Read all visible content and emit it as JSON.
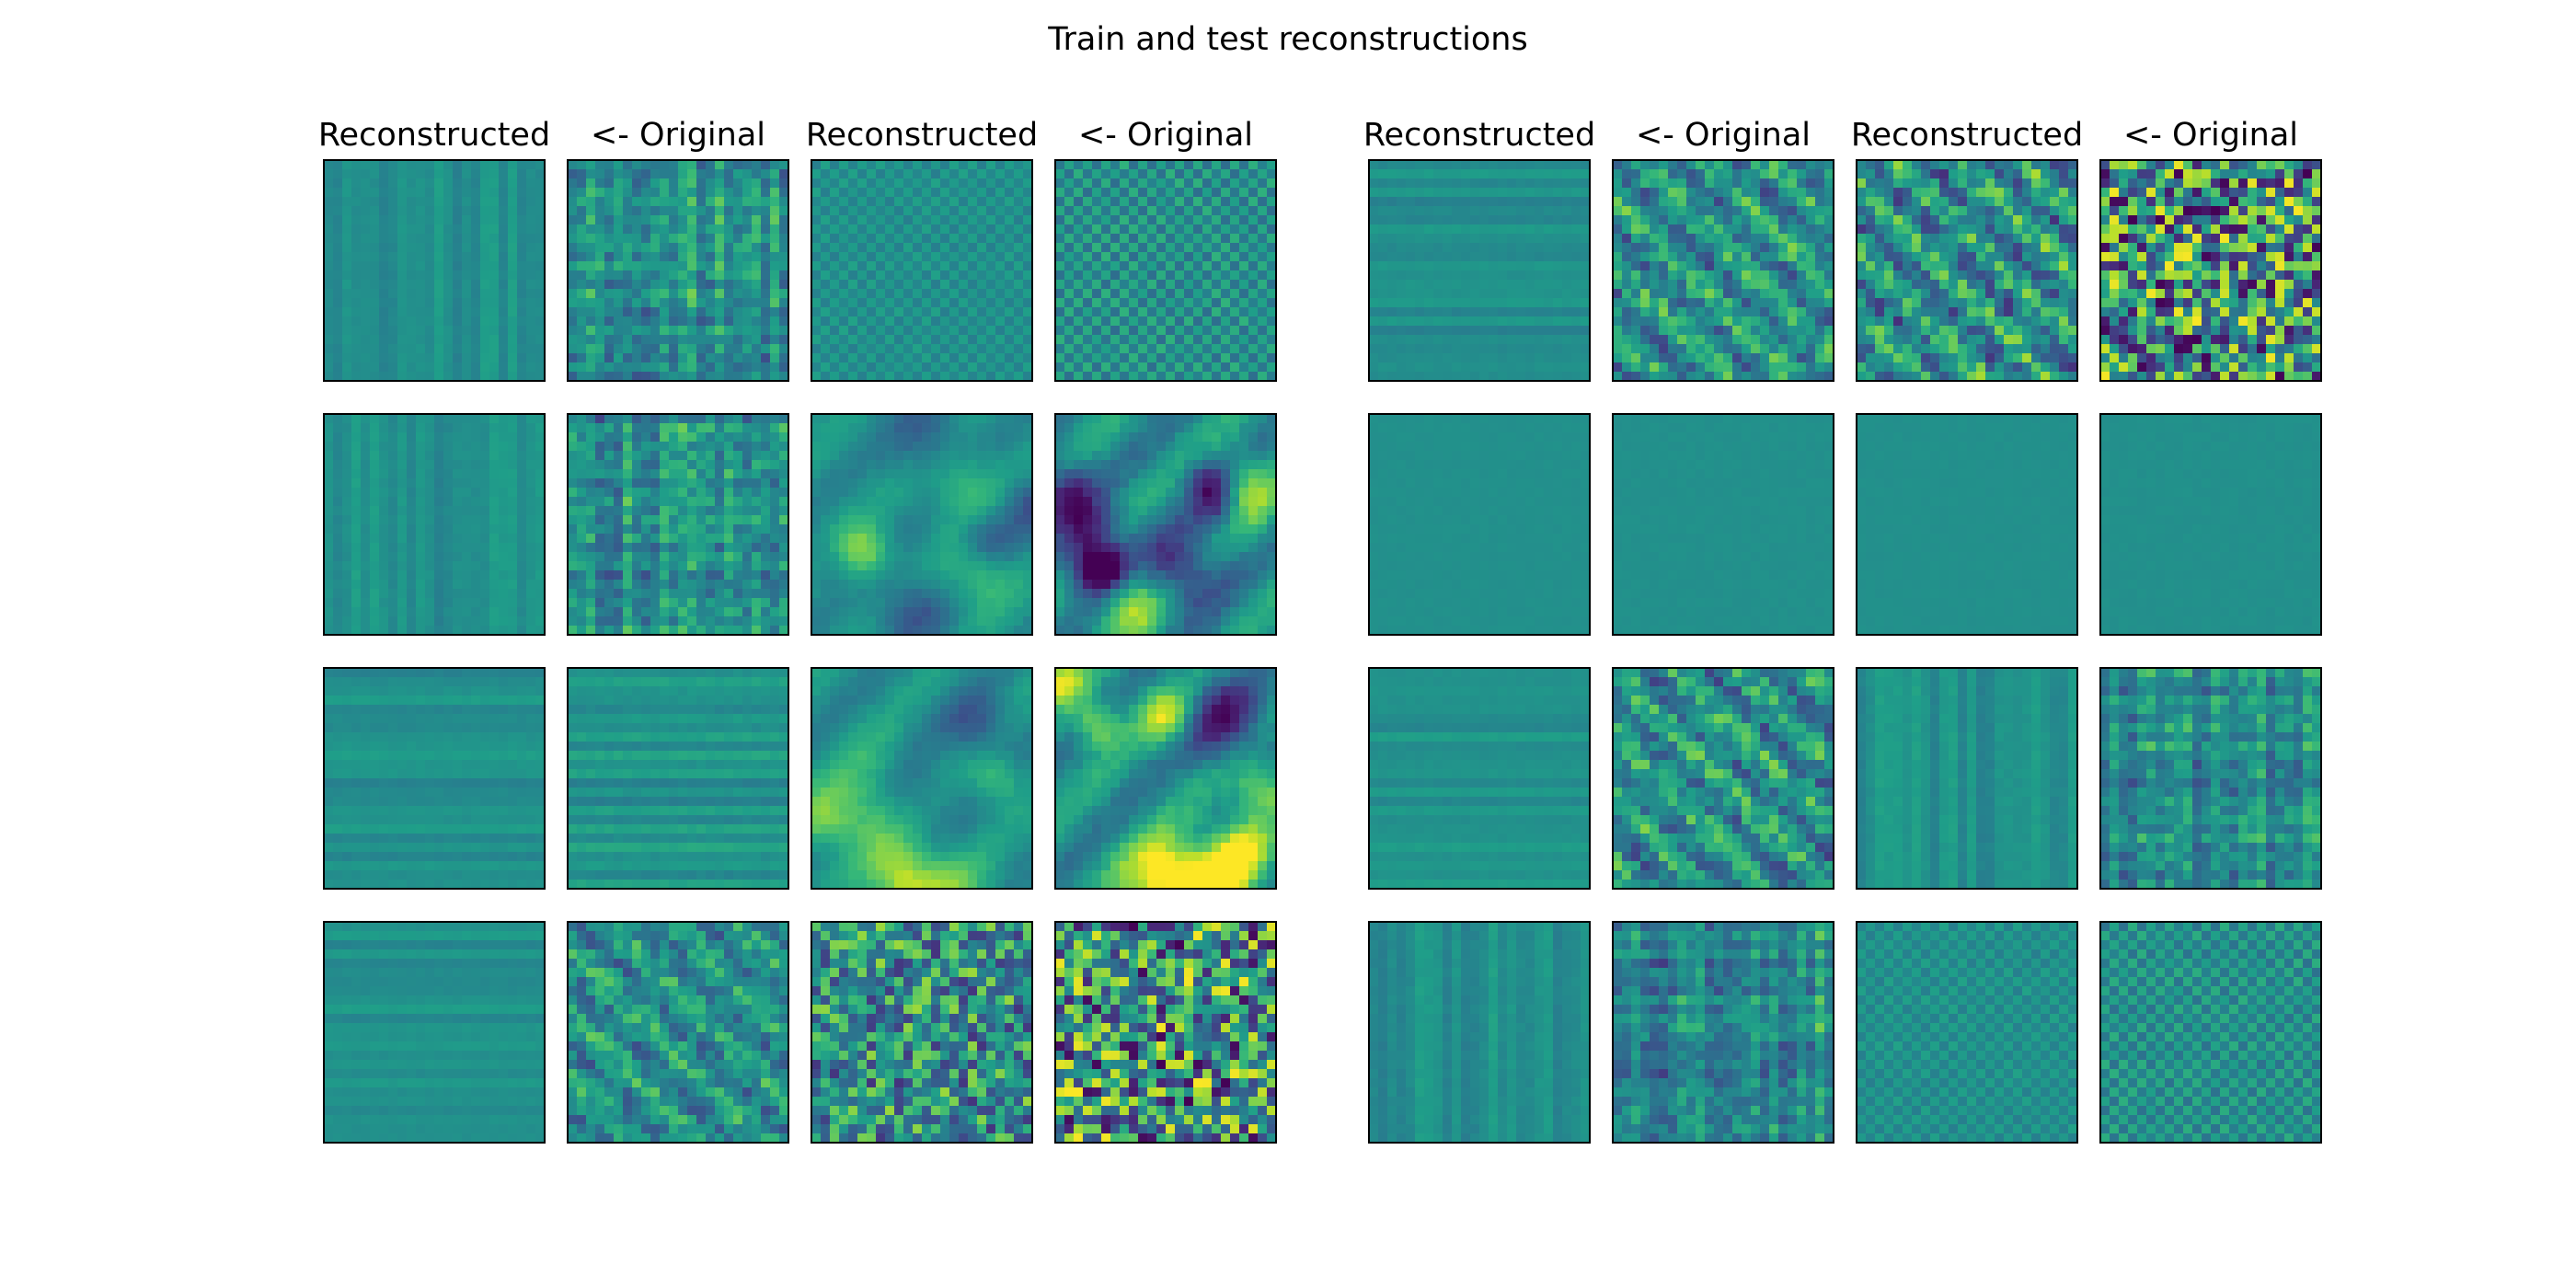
{
  "figure": {
    "title": "Train and test reconstructions"
  },
  "chart_data": {
    "type": "heatmap",
    "title": "Train and test reconstructions",
    "colormap": "viridis",
    "grid": false,
    "image_resolution": 24,
    "column_titles": [
      "Reconstructed",
      "<- Original",
      "Reconstructed",
      "<- Original"
    ],
    "panels": [
      {
        "rows": [
          [
            {
              "title": "Reconstructed",
              "pattern": "vertical-stripes",
              "contrast": 0.18
            },
            {
              "title": "<- Original",
              "pattern": "grid-noise",
              "contrast": 0.55
            },
            {
              "title": "Reconstructed",
              "pattern": "checker",
              "contrast": 0.2
            },
            {
              "title": "<- Original",
              "pattern": "checker",
              "contrast": 0.4
            }
          ],
          [
            {
              "title": "",
              "pattern": "vertical-stripes",
              "contrast": 0.2
            },
            {
              "title": "",
              "pattern": "grid-noise",
              "contrast": 0.55
            },
            {
              "title": "",
              "pattern": "blobs",
              "contrast": 0.55
            },
            {
              "title": "",
              "pattern": "blobs",
              "contrast": 1.0
            }
          ],
          [
            {
              "title": "",
              "pattern": "horizontal-stripes",
              "contrast": 0.16
            },
            {
              "title": "",
              "pattern": "horizontal-stripes",
              "contrast": 0.25
            },
            {
              "title": "",
              "pattern": "blobs",
              "contrast": 0.6
            },
            {
              "title": "",
              "pattern": "blobs",
              "contrast": 1.0
            }
          ],
          [
            {
              "title": "",
              "pattern": "horizontal-stripes",
              "contrast": 0.14
            },
            {
              "title": "",
              "pattern": "diagonal-noise",
              "contrast": 0.55
            },
            {
              "title": "",
              "pattern": "noise",
              "contrast": 0.7
            },
            {
              "title": "",
              "pattern": "noise",
              "contrast": 1.0
            }
          ]
        ]
      },
      {
        "rows": [
          [
            {
              "title": "Reconstructed",
              "pattern": "horizontal-stripes",
              "contrast": 0.18
            },
            {
              "title": "<- Original",
              "pattern": "diagonal-noise",
              "contrast": 0.65
            },
            {
              "title": "Reconstructed",
              "pattern": "diagonal-noise",
              "contrast": 0.75
            },
            {
              "title": "<- Original",
              "pattern": "noise",
              "contrast": 1.0
            }
          ],
          [
            {
              "title": "",
              "pattern": "flat",
              "contrast": 0.08
            },
            {
              "title": "",
              "pattern": "flat",
              "contrast": 0.1
            },
            {
              "title": "",
              "pattern": "flat",
              "contrast": 0.07
            },
            {
              "title": "",
              "pattern": "flat",
              "contrast": 0.1
            }
          ],
          [
            {
              "title": "",
              "pattern": "horizontal-stripes",
              "contrast": 0.14
            },
            {
              "title": "",
              "pattern": "diagonal-noise",
              "contrast": 0.65
            },
            {
              "title": "",
              "pattern": "vertical-stripes",
              "contrast": 0.2
            },
            {
              "title": "",
              "pattern": "grid-noise",
              "contrast": 0.55
            }
          ],
          [
            {
              "title": "",
              "pattern": "vertical-stripes",
              "contrast": 0.22
            },
            {
              "title": "",
              "pattern": "grid-noise",
              "contrast": 0.55
            },
            {
              "title": "",
              "pattern": "checker",
              "contrast": 0.2
            },
            {
              "title": "",
              "pattern": "checker",
              "contrast": 0.35
            }
          ]
        ]
      }
    ]
  }
}
